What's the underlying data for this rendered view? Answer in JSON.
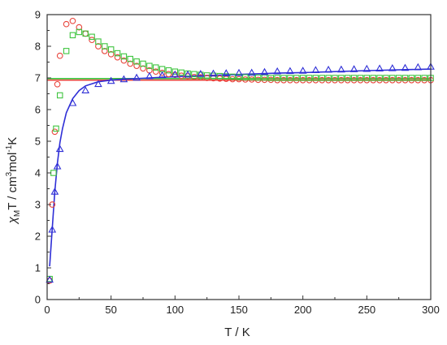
{
  "chart_data": {
    "type": "scatter",
    "title": "",
    "xlabel": "T / K",
    "ylabel_parts": {
      "chi": "χ",
      "chi_sub": "M",
      "main": "T / cm",
      "sup1": "3",
      "mid": "mol",
      "sup2": "-1",
      "end": "K"
    },
    "xlim": [
      0,
      300
    ],
    "ylim": [
      0,
      9
    ],
    "xticks": [
      0,
      50,
      100,
      150,
      200,
      250,
      300
    ],
    "yticks": [
      0,
      1,
      2,
      3,
      4,
      5,
      6,
      7,
      8,
      9
    ],
    "grid": false,
    "legend": "none",
    "series": [
      {
        "marker": "circle",
        "color": "#e8433a",
        "x": [
          2,
          4,
          6,
          8,
          10,
          15,
          20,
          25,
          30,
          35,
          40,
          45,
          50,
          55,
          60,
          65,
          70,
          75,
          80,
          85,
          90,
          95,
          100,
          105,
          110,
          115,
          120,
          125,
          130,
          135,
          140,
          145,
          150,
          155,
          160,
          165,
          170,
          175,
          180,
          185,
          190,
          195,
          200,
          205,
          210,
          215,
          220,
          225,
          230,
          235,
          240,
          245,
          250,
          255,
          260,
          265,
          270,
          275,
          280,
          285,
          290,
          295,
          300
        ],
        "y": [
          0.6,
          3.0,
          5.3,
          6.8,
          7.7,
          8.7,
          8.8,
          8.6,
          8.4,
          8.2,
          8.0,
          7.85,
          7.75,
          7.65,
          7.55,
          7.45,
          7.38,
          7.3,
          7.24,
          7.2,
          7.16,
          7.12,
          7.1,
          7.07,
          7.05,
          7.03,
          7.02,
          7.0,
          6.99,
          6.98,
          6.97,
          6.96,
          6.96,
          6.95,
          6.95,
          6.94,
          6.94,
          6.94,
          6.93,
          6.93,
          6.93,
          6.93,
          6.93,
          6.93,
          6.93,
          6.93,
          6.93,
          6.93,
          6.93,
          6.93,
          6.93,
          6.93,
          6.93,
          6.93,
          6.93,
          6.93,
          6.93,
          6.93,
          6.93,
          6.93,
          6.93,
          6.93,
          6.93
        ]
      },
      {
        "marker": "square",
        "color": "#3ec43e",
        "x": [
          2,
          5,
          7,
          10,
          15,
          20,
          25,
          30,
          35,
          40,
          45,
          50,
          55,
          60,
          65,
          70,
          75,
          80,
          85,
          90,
          95,
          100,
          105,
          110,
          115,
          120,
          125,
          130,
          135,
          140,
          145,
          150,
          155,
          160,
          165,
          170,
          175,
          180,
          185,
          190,
          195,
          200,
          205,
          210,
          215,
          220,
          225,
          230,
          235,
          240,
          245,
          250,
          255,
          260,
          265,
          270,
          275,
          280,
          285,
          290,
          295,
          300
        ],
        "y": [
          0.65,
          4.0,
          5.4,
          6.45,
          7.85,
          8.35,
          8.45,
          8.4,
          8.3,
          8.15,
          8.0,
          7.9,
          7.78,
          7.68,
          7.6,
          7.52,
          7.45,
          7.38,
          7.33,
          7.28,
          7.24,
          7.2,
          7.17,
          7.14,
          7.12,
          7.1,
          7.08,
          7.07,
          7.06,
          7.05,
          7.04,
          7.03,
          7.02,
          7.02,
          7.01,
          7.01,
          7.0,
          7.0,
          7.0,
          7.0,
          7.0,
          7.0,
          7.0,
          7.0,
          7.0,
          7.0,
          7.0,
          7.0,
          7.0,
          7.0,
          7.0,
          7.0,
          7.0,
          7.0,
          7.0,
          7.0,
          7.0,
          7.0,
          7.0,
          7.0,
          7.0,
          7.0
        ]
      },
      {
        "marker": "triangle",
        "color": "#2f2fd6",
        "x": [
          2,
          4,
          6,
          8,
          10,
          20,
          30,
          40,
          50,
          60,
          70,
          80,
          90,
          100,
          110,
          120,
          130,
          140,
          150,
          160,
          170,
          180,
          190,
          200,
          210,
          220,
          230,
          240,
          250,
          260,
          270,
          280,
          290,
          300
        ],
        "y": [
          0.62,
          2.2,
          3.4,
          4.2,
          4.75,
          6.2,
          6.6,
          6.8,
          6.9,
          6.95,
          7.0,
          7.05,
          7.08,
          7.1,
          7.1,
          7.12,
          7.13,
          7.14,
          7.15,
          7.16,
          7.18,
          7.2,
          7.21,
          7.22,
          7.24,
          7.25,
          7.26,
          7.27,
          7.28,
          7.29,
          7.3,
          7.31,
          7.33,
          7.35
        ]
      },
      {
        "type": "line",
        "color": "#e8433a",
        "x": [
          0,
          300
        ],
        "y": [
          6.93,
          6.93
        ]
      },
      {
        "type": "line",
        "color": "#3ec43e",
        "x": [
          0,
          300
        ],
        "y": [
          6.98,
          6.98
        ]
      },
      {
        "type": "line",
        "color": "#2f2fd6",
        "x": [
          2,
          4,
          6,
          8,
          10,
          12,
          15,
          20,
          25,
          30,
          40,
          50,
          60,
          70,
          80,
          90,
          100,
          120,
          150,
          180,
          200,
          250,
          300
        ],
        "y": [
          1.05,
          2.25,
          3.4,
          4.3,
          4.95,
          5.4,
          5.9,
          6.35,
          6.6,
          6.75,
          6.88,
          6.93,
          6.96,
          6.98,
          7.0,
          7.02,
          7.04,
          7.07,
          7.11,
          7.15,
          7.17,
          7.23,
          7.28
        ]
      }
    ]
  }
}
